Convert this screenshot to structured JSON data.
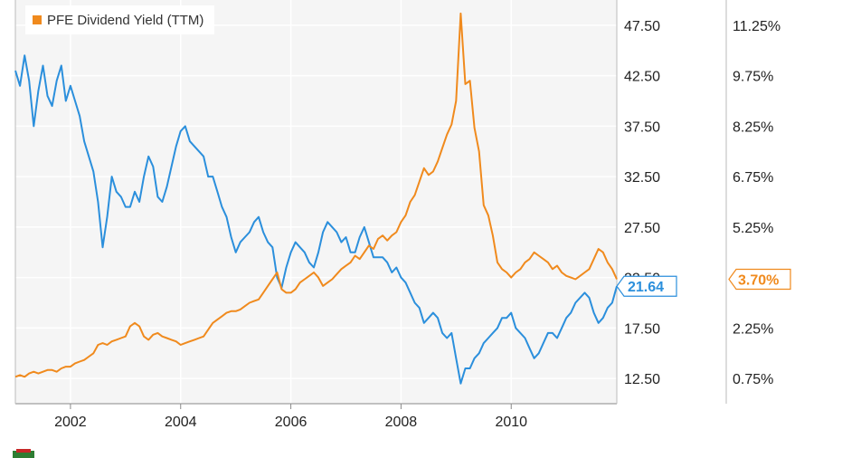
{
  "colors": {
    "price": "#2b8fdc",
    "yield": "#f08a1d",
    "plot_bg": "#f5f5f5",
    "grid": "#ffffff",
    "tag_border_price": "#2b8fdc",
    "tag_border_yield": "#f08a1d"
  },
  "legend": {
    "yield_label": "PFE Dividend Yield (TTM)"
  },
  "logo": {
    "icon": "ycharts-logo-icon"
  },
  "chart_data": {
    "type": "line",
    "x_ticks": [
      "2002",
      "2004",
      "2006",
      "2008",
      "2010"
    ],
    "left_axis": {
      "ticks": [
        "12.50",
        "17.50",
        "22.50",
        "27.50",
        "32.50",
        "37.50",
        "42.50",
        "47.50"
      ],
      "range": [
        10,
        50
      ]
    },
    "right_axis": {
      "ticks": [
        "0.75%",
        "2.25%",
        "3.75%",
        "5.25%",
        "6.75%",
        "8.25%",
        "9.75%",
        "11.25%"
      ],
      "range": [
        0,
        12
      ]
    },
    "xlim": [
      "2001-01",
      "2011-12"
    ],
    "last_values": {
      "price": "21.64",
      "yield": "3.70%"
    },
    "series": [
      {
        "axis": "left",
        "points": [
          [
            "2001-01",
            43.0
          ],
          [
            "2001-02",
            41.5
          ],
          [
            "2001-03",
            44.5
          ],
          [
            "2001-04",
            42.0
          ],
          [
            "2001-05",
            37.5
          ],
          [
            "2001-06",
            41.0
          ],
          [
            "2001-07",
            43.5
          ],
          [
            "2001-08",
            40.5
          ],
          [
            "2001-09",
            39.5
          ],
          [
            "2001-10",
            42.0
          ],
          [
            "2001-11",
            43.5
          ],
          [
            "2001-12",
            40.0
          ],
          [
            "2002-01",
            41.5
          ],
          [
            "2002-02",
            40.0
          ],
          [
            "2002-03",
            38.5
          ],
          [
            "2002-04",
            36.0
          ],
          [
            "2002-05",
            34.5
          ],
          [
            "2002-06",
            33.0
          ],
          [
            "2002-07",
            30.0
          ],
          [
            "2002-08",
            25.5
          ],
          [
            "2002-09",
            28.5
          ],
          [
            "2002-10",
            32.5
          ],
          [
            "2002-11",
            31.0
          ],
          [
            "2002-12",
            30.5
          ],
          [
            "2003-01",
            29.5
          ],
          [
            "2003-02",
            29.5
          ],
          [
            "2003-03",
            31.0
          ],
          [
            "2003-04",
            30.0
          ],
          [
            "2003-05",
            32.5
          ],
          [
            "2003-06",
            34.5
          ],
          [
            "2003-07",
            33.5
          ],
          [
            "2003-08",
            30.5
          ],
          [
            "2003-09",
            30.0
          ],
          [
            "2003-10",
            31.5
          ],
          [
            "2003-11",
            33.5
          ],
          [
            "2003-12",
            35.5
          ],
          [
            "2004-01",
            37.0
          ],
          [
            "2004-02",
            37.5
          ],
          [
            "2004-03",
            36.0
          ],
          [
            "2004-04",
            35.5
          ],
          [
            "2004-05",
            35.0
          ],
          [
            "2004-06",
            34.5
          ],
          [
            "2004-07",
            32.5
          ],
          [
            "2004-08",
            32.5
          ],
          [
            "2004-09",
            31.0
          ],
          [
            "2004-10",
            29.5
          ],
          [
            "2004-11",
            28.5
          ],
          [
            "2004-12",
            26.5
          ],
          [
            "2005-01",
            25.0
          ],
          [
            "2005-02",
            26.0
          ],
          [
            "2005-03",
            26.5
          ],
          [
            "2005-04",
            27.0
          ],
          [
            "2005-05",
            28.0
          ],
          [
            "2005-06",
            28.5
          ],
          [
            "2005-07",
            27.0
          ],
          [
            "2005-08",
            26.0
          ],
          [
            "2005-09",
            25.5
          ],
          [
            "2005-10",
            22.5
          ],
          [
            "2005-11",
            21.5
          ],
          [
            "2005-12",
            23.5
          ],
          [
            "2006-01",
            25.0
          ],
          [
            "2006-02",
            26.0
          ],
          [
            "2006-03",
            25.5
          ],
          [
            "2006-04",
            25.0
          ],
          [
            "2006-05",
            24.0
          ],
          [
            "2006-06",
            23.5
          ],
          [
            "2006-07",
            25.0
          ],
          [
            "2006-08",
            27.0
          ],
          [
            "2006-09",
            28.0
          ],
          [
            "2006-10",
            27.5
          ],
          [
            "2006-11",
            27.0
          ],
          [
            "2006-12",
            26.0
          ],
          [
            "2007-01",
            26.5
          ],
          [
            "2007-02",
            25.0
          ],
          [
            "2007-03",
            25.0
          ],
          [
            "2007-04",
            26.5
          ],
          [
            "2007-05",
            27.5
          ],
          [
            "2007-06",
            26.0
          ],
          [
            "2007-07",
            24.5
          ],
          [
            "2007-08",
            24.5
          ],
          [
            "2007-09",
            24.5
          ],
          [
            "2007-10",
            24.0
          ],
          [
            "2007-11",
            23.0
          ],
          [
            "2007-12",
            23.5
          ],
          [
            "2008-01",
            22.5
          ],
          [
            "2008-02",
            22.0
          ],
          [
            "2008-03",
            21.0
          ],
          [
            "2008-04",
            20.0
          ],
          [
            "2008-05",
            19.5
          ],
          [
            "2008-06",
            18.0
          ],
          [
            "2008-07",
            18.5
          ],
          [
            "2008-08",
            19.0
          ],
          [
            "2008-09",
            18.5
          ],
          [
            "2008-10",
            17.0
          ],
          [
            "2008-11",
            16.5
          ],
          [
            "2008-12",
            17.0
          ],
          [
            "2009-01",
            14.5
          ],
          [
            "2009-02",
            12.0
          ],
          [
            "2009-03",
            13.5
          ],
          [
            "2009-04",
            13.5
          ],
          [
            "2009-05",
            14.5
          ],
          [
            "2009-06",
            15.0
          ],
          [
            "2009-07",
            16.0
          ],
          [
            "2009-08",
            16.5
          ],
          [
            "2009-09",
            17.0
          ],
          [
            "2009-10",
            17.5
          ],
          [
            "2009-11",
            18.5
          ],
          [
            "2009-12",
            18.5
          ],
          [
            "2010-01",
            19.0
          ],
          [
            "2010-02",
            17.5
          ],
          [
            "2010-03",
            17.0
          ],
          [
            "2010-04",
            16.5
          ],
          [
            "2010-05",
            15.5
          ],
          [
            "2010-06",
            14.5
          ],
          [
            "2010-07",
            15.0
          ],
          [
            "2010-08",
            16.0
          ],
          [
            "2010-09",
            17.0
          ],
          [
            "2010-10",
            17.0
          ],
          [
            "2010-11",
            16.5
          ],
          [
            "2010-12",
            17.5
          ],
          [
            "2011-01",
            18.5
          ],
          [
            "2011-02",
            19.0
          ],
          [
            "2011-03",
            20.0
          ],
          [
            "2011-04",
            20.5
          ],
          [
            "2011-05",
            21.0
          ],
          [
            "2011-06",
            20.5
          ],
          [
            "2011-07",
            19.0
          ],
          [
            "2011-08",
            18.0
          ],
          [
            "2011-09",
            18.5
          ],
          [
            "2011-10",
            19.5
          ],
          [
            "2011-11",
            20.0
          ],
          [
            "2011-12",
            21.64
          ]
        ]
      },
      {
        "name": "PFE Dividend Yield (TTM)",
        "axis": "right",
        "points": [
          [
            "2001-01",
            0.8
          ],
          [
            "2001-02",
            0.85
          ],
          [
            "2001-03",
            0.8
          ],
          [
            "2001-04",
            0.9
          ],
          [
            "2001-05",
            0.95
          ],
          [
            "2001-06",
            0.9
          ],
          [
            "2001-07",
            0.95
          ],
          [
            "2001-08",
            1.0
          ],
          [
            "2001-09",
            1.0
          ],
          [
            "2001-10",
            0.95
          ],
          [
            "2001-11",
            1.05
          ],
          [
            "2001-12",
            1.1
          ],
          [
            "2002-01",
            1.1
          ],
          [
            "2002-02",
            1.2
          ],
          [
            "2002-03",
            1.25
          ],
          [
            "2002-04",
            1.3
          ],
          [
            "2002-05",
            1.4
          ],
          [
            "2002-06",
            1.5
          ],
          [
            "2002-07",
            1.75
          ],
          [
            "2002-08",
            1.8
          ],
          [
            "2002-09",
            1.75
          ],
          [
            "2002-10",
            1.85
          ],
          [
            "2002-11",
            1.9
          ],
          [
            "2002-12",
            1.95
          ],
          [
            "2003-01",
            2.0
          ],
          [
            "2003-02",
            2.3
          ],
          [
            "2003-03",
            2.4
          ],
          [
            "2003-04",
            2.3
          ],
          [
            "2003-05",
            2.0
          ],
          [
            "2003-06",
            1.9
          ],
          [
            "2003-07",
            2.05
          ],
          [
            "2003-08",
            2.1
          ],
          [
            "2003-09",
            2.0
          ],
          [
            "2003-10",
            1.95
          ],
          [
            "2003-11",
            1.9
          ],
          [
            "2003-12",
            1.85
          ],
          [
            "2004-01",
            1.75
          ],
          [
            "2004-02",
            1.8
          ],
          [
            "2004-03",
            1.85
          ],
          [
            "2004-04",
            1.9
          ],
          [
            "2004-05",
            1.95
          ],
          [
            "2004-06",
            2.0
          ],
          [
            "2004-07",
            2.2
          ],
          [
            "2004-08",
            2.4
          ],
          [
            "2004-09",
            2.5
          ],
          [
            "2004-10",
            2.6
          ],
          [
            "2004-11",
            2.7
          ],
          [
            "2004-12",
            2.75
          ],
          [
            "2005-01",
            2.75
          ],
          [
            "2005-02",
            2.8
          ],
          [
            "2005-03",
            2.9
          ],
          [
            "2005-04",
            3.0
          ],
          [
            "2005-05",
            3.05
          ],
          [
            "2005-06",
            3.1
          ],
          [
            "2005-07",
            3.3
          ],
          [
            "2005-08",
            3.5
          ],
          [
            "2005-09",
            3.7
          ],
          [
            "2005-10",
            3.9
          ],
          [
            "2005-11",
            3.4
          ],
          [
            "2005-12",
            3.3
          ],
          [
            "2006-01",
            3.3
          ],
          [
            "2006-02",
            3.4
          ],
          [
            "2006-03",
            3.6
          ],
          [
            "2006-04",
            3.7
          ],
          [
            "2006-05",
            3.8
          ],
          [
            "2006-06",
            3.9
          ],
          [
            "2006-07",
            3.75
          ],
          [
            "2006-08",
            3.5
          ],
          [
            "2006-09",
            3.6
          ],
          [
            "2006-10",
            3.7
          ],
          [
            "2006-11",
            3.85
          ],
          [
            "2006-12",
            4.0
          ],
          [
            "2007-01",
            4.1
          ],
          [
            "2007-02",
            4.2
          ],
          [
            "2007-03",
            4.4
          ],
          [
            "2007-04",
            4.3
          ],
          [
            "2007-05",
            4.5
          ],
          [
            "2007-06",
            4.7
          ],
          [
            "2007-07",
            4.6
          ],
          [
            "2007-08",
            4.9
          ],
          [
            "2007-09",
            5.0
          ],
          [
            "2007-10",
            4.85
          ],
          [
            "2007-11",
            5.0
          ],
          [
            "2007-12",
            5.1
          ],
          [
            "2008-01",
            5.4
          ],
          [
            "2008-02",
            5.6
          ],
          [
            "2008-03",
            6.0
          ],
          [
            "2008-04",
            6.2
          ],
          [
            "2008-05",
            6.6
          ],
          [
            "2008-06",
            7.0
          ],
          [
            "2008-07",
            6.8
          ],
          [
            "2008-08",
            6.9
          ],
          [
            "2008-09",
            7.2
          ],
          [
            "2008-10",
            7.6
          ],
          [
            "2008-11",
            8.0
          ],
          [
            "2008-12",
            8.3
          ],
          [
            "2009-01",
            9.0
          ],
          [
            "2009-02",
            11.6
          ],
          [
            "2009-03",
            9.5
          ],
          [
            "2009-04",
            9.6
          ],
          [
            "2009-05",
            8.2
          ],
          [
            "2009-06",
            7.5
          ],
          [
            "2009-07",
            5.9
          ],
          [
            "2009-08",
            5.6
          ],
          [
            "2009-09",
            5.0
          ],
          [
            "2009-10",
            4.2
          ],
          [
            "2009-11",
            4.0
          ],
          [
            "2009-12",
            3.9
          ],
          [
            "2010-01",
            3.75
          ],
          [
            "2010-02",
            3.9
          ],
          [
            "2010-03",
            4.0
          ],
          [
            "2010-04",
            4.2
          ],
          [
            "2010-05",
            4.3
          ],
          [
            "2010-06",
            4.5
          ],
          [
            "2010-07",
            4.4
          ],
          [
            "2010-08",
            4.3
          ],
          [
            "2010-09",
            4.2
          ],
          [
            "2010-10",
            4.0
          ],
          [
            "2010-11",
            4.1
          ],
          [
            "2010-12",
            3.9
          ],
          [
            "2011-01",
            3.8
          ],
          [
            "2011-02",
            3.75
          ],
          [
            "2011-03",
            3.7
          ],
          [
            "2011-04",
            3.8
          ],
          [
            "2011-05",
            3.9
          ],
          [
            "2011-06",
            4.0
          ],
          [
            "2011-07",
            4.3
          ],
          [
            "2011-08",
            4.6
          ],
          [
            "2011-09",
            4.5
          ],
          [
            "2011-10",
            4.2
          ],
          [
            "2011-11",
            4.0
          ],
          [
            "2011-12",
            3.7
          ]
        ]
      }
    ]
  }
}
